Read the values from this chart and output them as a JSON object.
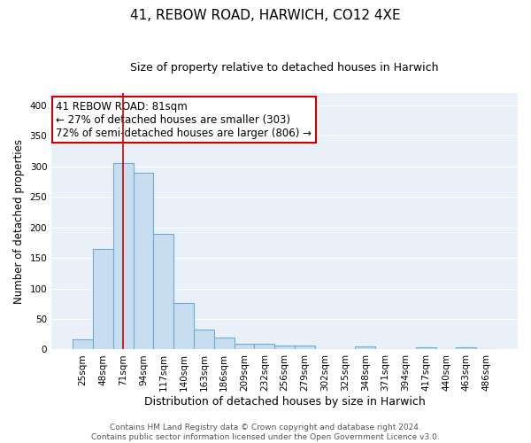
{
  "title": "41, REBOW ROAD, HARWICH, CO12 4XE",
  "subtitle": "Size of property relative to detached houses in Harwich",
  "xlabel": "Distribution of detached houses by size in Harwich",
  "ylabel": "Number of detached properties",
  "bar_color": "#c9ddf0",
  "bar_edge_color": "#6aadd5",
  "background_color": "#eaf0f8",
  "grid_color": "#ffffff",
  "categories": [
    "25sqm",
    "48sqm",
    "71sqm",
    "94sqm",
    "117sqm",
    "140sqm",
    "163sqm",
    "186sqm",
    "209sqm",
    "232sqm",
    "256sqm",
    "279sqm",
    "302sqm",
    "325sqm",
    "348sqm",
    "371sqm",
    "394sqm",
    "417sqm",
    "440sqm",
    "463sqm",
    "486sqm"
  ],
  "values": [
    16,
    165,
    305,
    290,
    190,
    76,
    33,
    20,
    10,
    9,
    6,
    6,
    0,
    0,
    5,
    0,
    0,
    4,
    0,
    4,
    0
  ],
  "red_line_x": 2.0,
  "annotation_line1": "41 REBOW ROAD: 81sqm",
  "annotation_line2": "← 27% of detached houses are smaller (303)",
  "annotation_line3": "72% of semi-detached houses are larger (806) →",
  "annotation_box_color": "white",
  "annotation_box_edge_color": "#cc0000",
  "footnote_line1": "Contains HM Land Registry data © Crown copyright and database right 2024.",
  "footnote_line2": "Contains public sector information licensed under the Open Government Licence v3.0.",
  "ylim": [
    0,
    420
  ],
  "yticks": [
    0,
    50,
    100,
    150,
    200,
    250,
    300,
    350,
    400
  ],
  "title_fontsize": 11,
  "subtitle_fontsize": 9,
  "ylabel_fontsize": 8.5,
  "xlabel_fontsize": 9,
  "tick_fontsize": 7.5,
  "footnote_fontsize": 6.5,
  "annotation_fontsize": 8.5
}
